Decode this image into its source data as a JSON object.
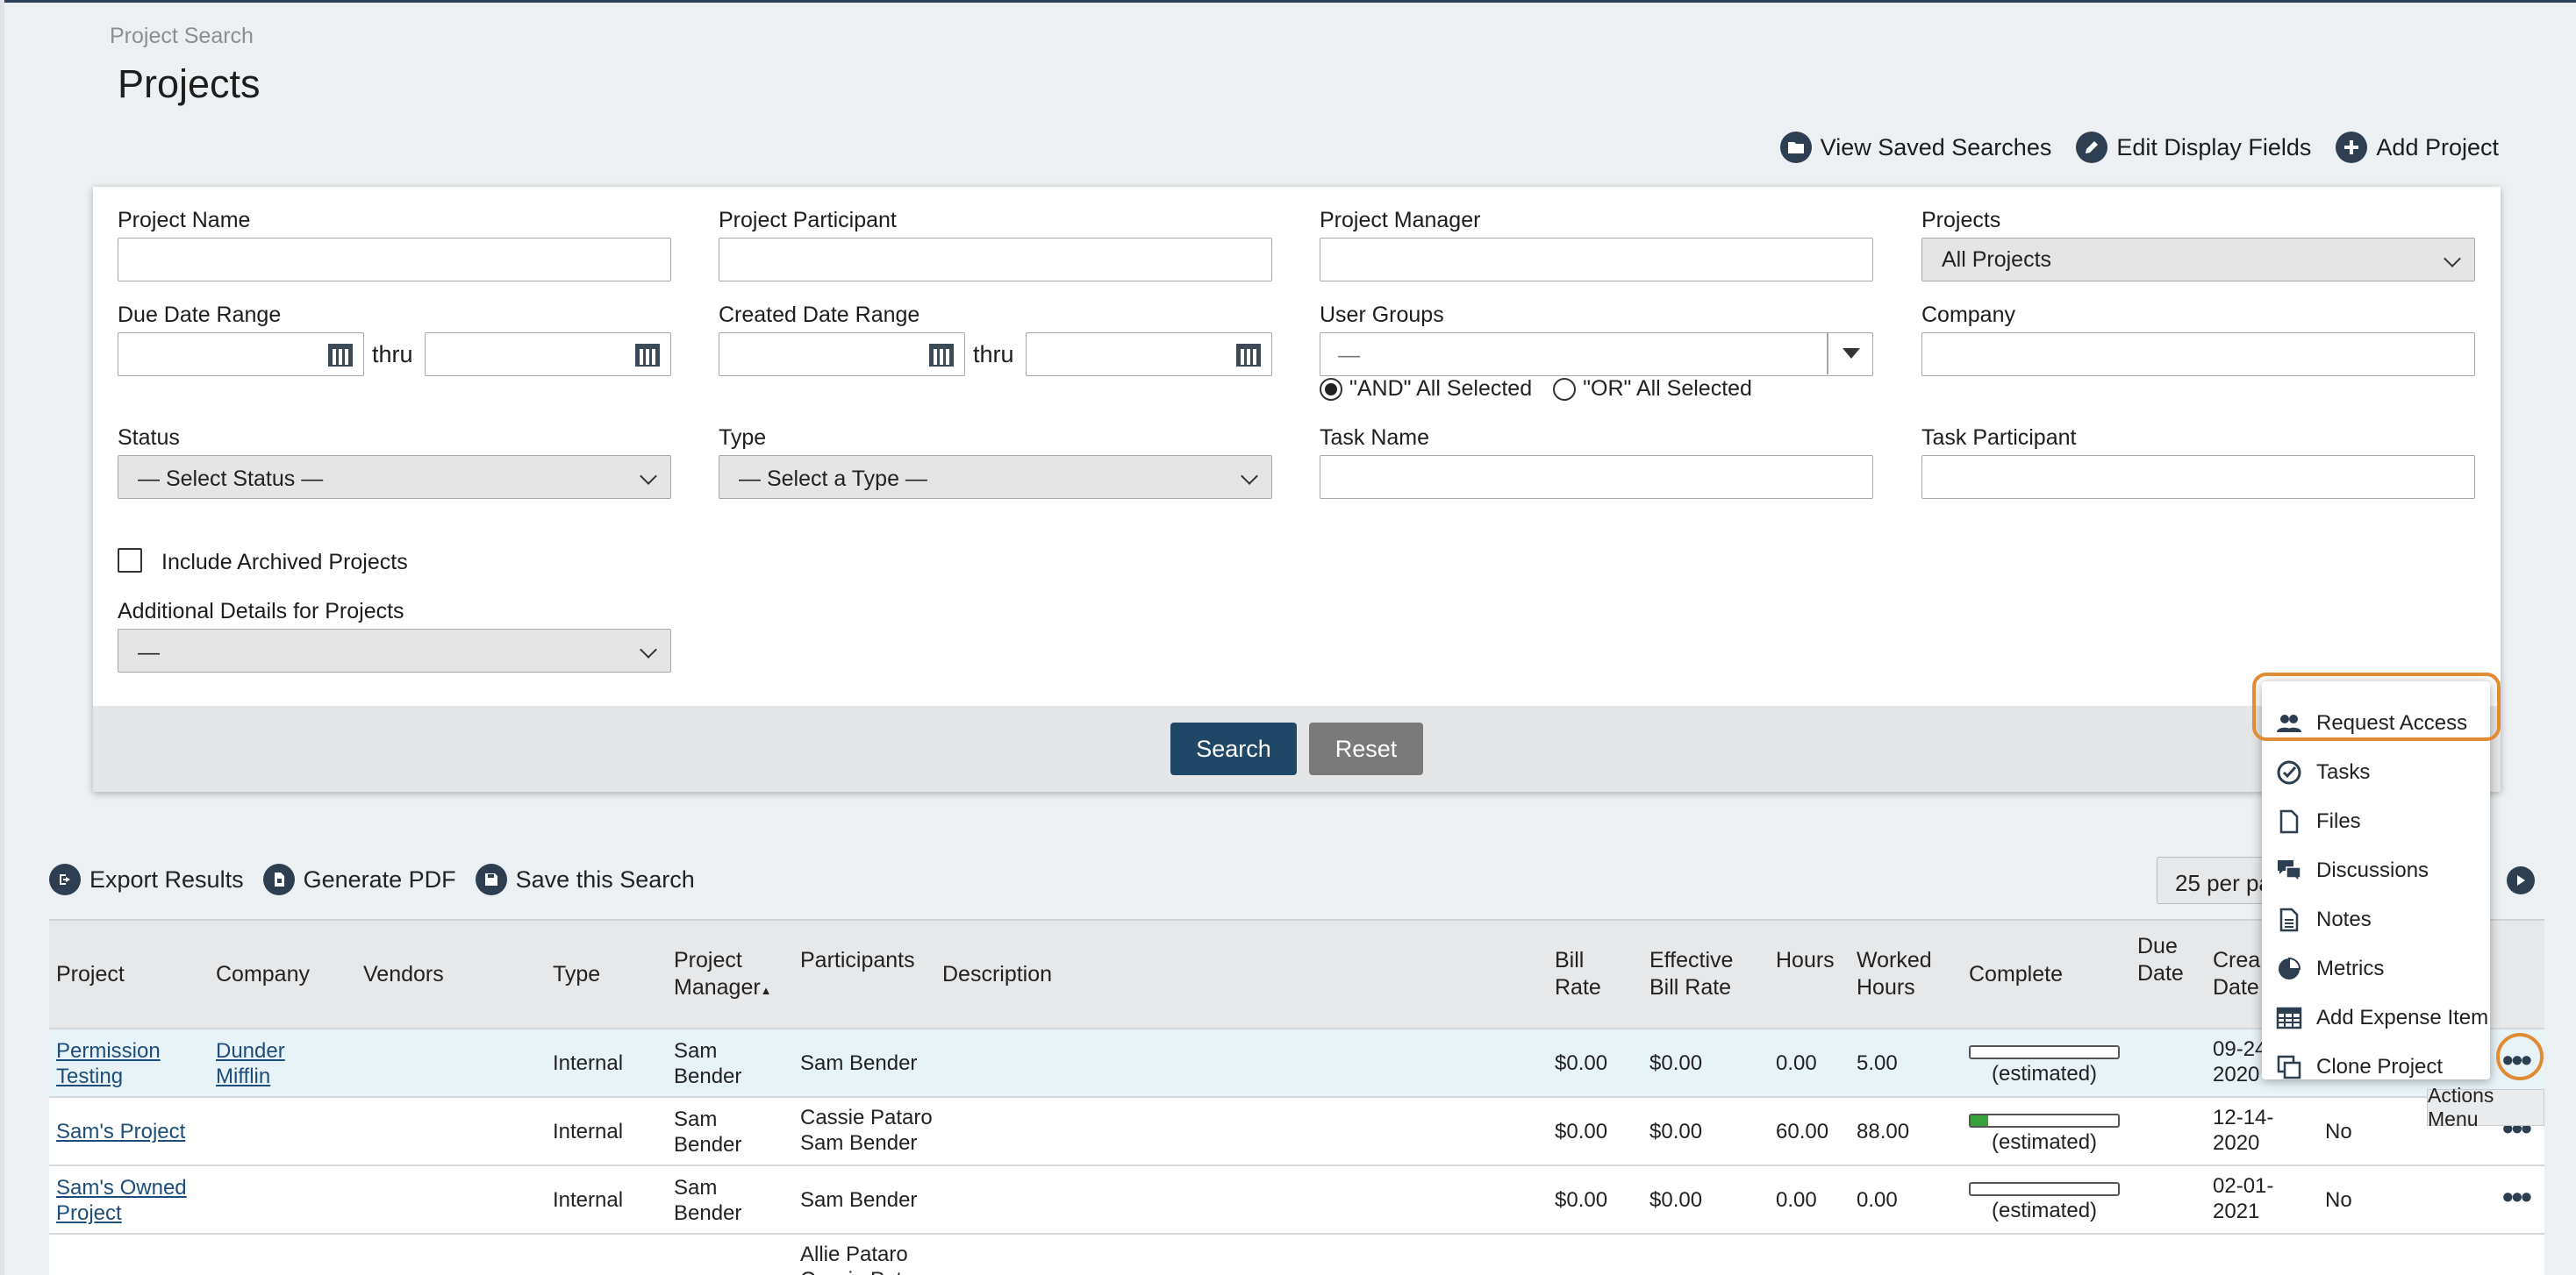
{
  "page": {
    "breadcrumb": "Project Search",
    "title": "Projects"
  },
  "toplinks": {
    "saved": "View Saved Searches",
    "edit": "Edit Display Fields",
    "add": "Add Project"
  },
  "form": {
    "project_name": "Project Name",
    "project_participant": "Project Participant",
    "project_manager": "Project Manager",
    "projects": "Projects",
    "projects_value": "All Projects",
    "due_date_range": "Due Date Range",
    "thru": "thru",
    "created_date_range": "Created Date Range",
    "user_groups": "User Groups",
    "user_groups_value": "—",
    "and_label": "\"AND\" All Selected",
    "or_label": "\"OR\" All Selected",
    "company": "Company",
    "status": "Status",
    "status_value": "— Select Status —",
    "type": "Type",
    "type_value": "— Select a Type —",
    "task_name": "Task Name",
    "task_participant": "Task Participant",
    "include_archived": "Include Archived Projects",
    "additional_details": "Additional Details for Projects",
    "additional_value": "—",
    "search": "Search",
    "reset": "Reset"
  },
  "tools": {
    "export": "Export Results",
    "pdf": "Generate PDF",
    "save": "Save this Search",
    "per_page": "25 per pa"
  },
  "table": {
    "headers": {
      "project": "Project",
      "company": "Company",
      "vendors": "Vendors",
      "type": "Type",
      "pm1": "Project",
      "pm2": "Manager",
      "participants": "Participants",
      "description": "Description",
      "bill1": "Bill",
      "bill2": "Rate",
      "eff1": "Effective",
      "eff2": "Bill Rate",
      "hours": "Hours",
      "worked1": "Worked",
      "worked2": "Hours",
      "complete": "Complete",
      "due1": "Due",
      "due2": "Date",
      "created1": "Crea",
      "created2": "Date"
    },
    "rows": [
      {
        "project1": "Permission",
        "project2": "Testing",
        "company1": "Dunder",
        "company2": "Mifflin",
        "type": "Internal",
        "pm1": "Sam",
        "pm2": "Bender",
        "participant1": "Sam Bender",
        "participant2": "",
        "bill": "$0.00",
        "eff": "$0.00",
        "hours": "0.00",
        "worked": "5.00",
        "progress": 0,
        "est": "(estimated)",
        "created1": "09-24",
        "created2": "2020",
        "archived": ""
      },
      {
        "project1": "Sam's Project",
        "project2": "",
        "company1": "",
        "company2": "",
        "type": "Internal",
        "pm1": "Sam",
        "pm2": "Bender",
        "participant1": "Cassie Pataro",
        "participant2": "Sam Bender",
        "bill": "$0.00",
        "eff": "$0.00",
        "hours": "60.00",
        "worked": "88.00",
        "progress": 0.12,
        "est": "(estimated)",
        "created1": "12-14-",
        "created2": "2020",
        "archived": "No"
      },
      {
        "project1": "Sam's Owned",
        "project2": "Project",
        "company1": "",
        "company2": "",
        "type": "Internal",
        "pm1": "Sam",
        "pm2": "Bender",
        "participant1": "Sam Bender",
        "participant2": "",
        "bill": "$0.00",
        "eff": "$0.00",
        "hours": "0.00",
        "worked": "0.00",
        "progress": 0,
        "est": "(estimated)",
        "created1": "02-01-",
        "created2": "2021",
        "archived": "No"
      },
      {
        "participant1": "Allie Pataro",
        "participant2": "Cassie Pataro"
      }
    ]
  },
  "actions_menu": {
    "items": [
      "Request Access",
      "Tasks",
      "Files",
      "Discussions",
      "Notes",
      "Metrics",
      "Add Expense Item",
      "Clone Project"
    ],
    "tooltip": "Actions Menu"
  },
  "colors": {
    "primary": "#1f4866",
    "reset": "#7a7a7a",
    "highlight": "#e28b35",
    "progress": "#37a03a"
  }
}
